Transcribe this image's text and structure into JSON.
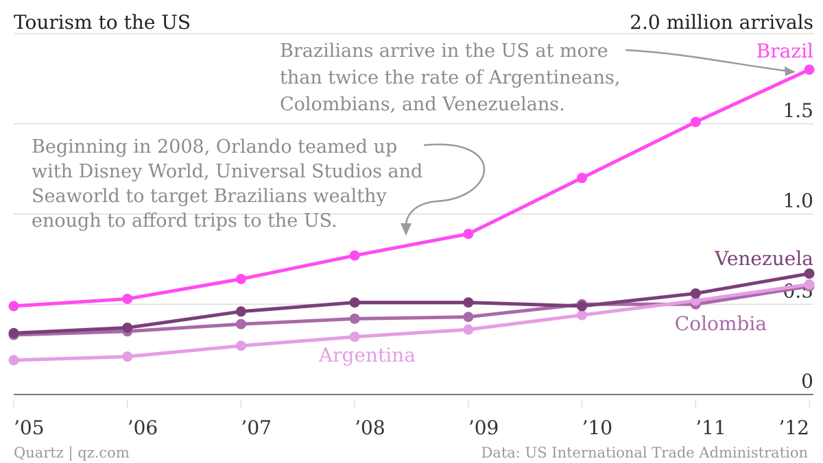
{
  "chart_data": {
    "type": "line",
    "title": "Tourism to the US",
    "unit_label": "2.0 million arrivals",
    "x": [
      "’05",
      "’06",
      "’07",
      "’08",
      "’09",
      "’10",
      "’11",
      "’12"
    ],
    "ylim": [
      0,
      2.0
    ],
    "y_ticks": [
      {
        "value": 0,
        "label": "0"
      },
      {
        "value": 0.5,
        "label": "0.5"
      },
      {
        "value": 1.0,
        "label": "1.0"
      },
      {
        "value": 1.5,
        "label": "1.5"
      }
    ],
    "grid": true,
    "series": [
      {
        "name": "Colombia",
        "color": "#a86aa8",
        "values": [
          0.33,
          0.35,
          0.39,
          0.42,
          0.43,
          0.5,
          0.5,
          0.6
        ]
      },
      {
        "name": "Argentina",
        "color": "#e49ee4",
        "values": [
          0.19,
          0.21,
          0.27,
          0.32,
          0.36,
          0.44,
          0.52,
          0.61
        ]
      },
      {
        "name": "Venezuela",
        "color": "#7b3f78",
        "values": [
          0.34,
          0.37,
          0.46,
          0.51,
          0.51,
          0.49,
          0.56,
          0.67
        ]
      },
      {
        "name": "Brazil",
        "color": "#ff4cf0",
        "values": [
          0.49,
          0.53,
          0.64,
          0.77,
          0.89,
          1.2,
          1.51,
          1.8
        ]
      }
    ],
    "annotations": [
      {
        "lines": [
          "Brazilians arrive in the US at more",
          "than twice the rate of Argentineans,",
          "Colombians, and Venezuelans."
        ]
      },
      {
        "lines": [
          "Beginning in 2008, Orlando teamed up",
          "with Disney World, Universal Studios and",
          "Seaworld to target Brazilians wealthy",
          "enough to afford trips to the US."
        ]
      }
    ]
  },
  "footer": {
    "left": "Quartz | qz.com",
    "right": "Data: US International Trade Administration"
  }
}
